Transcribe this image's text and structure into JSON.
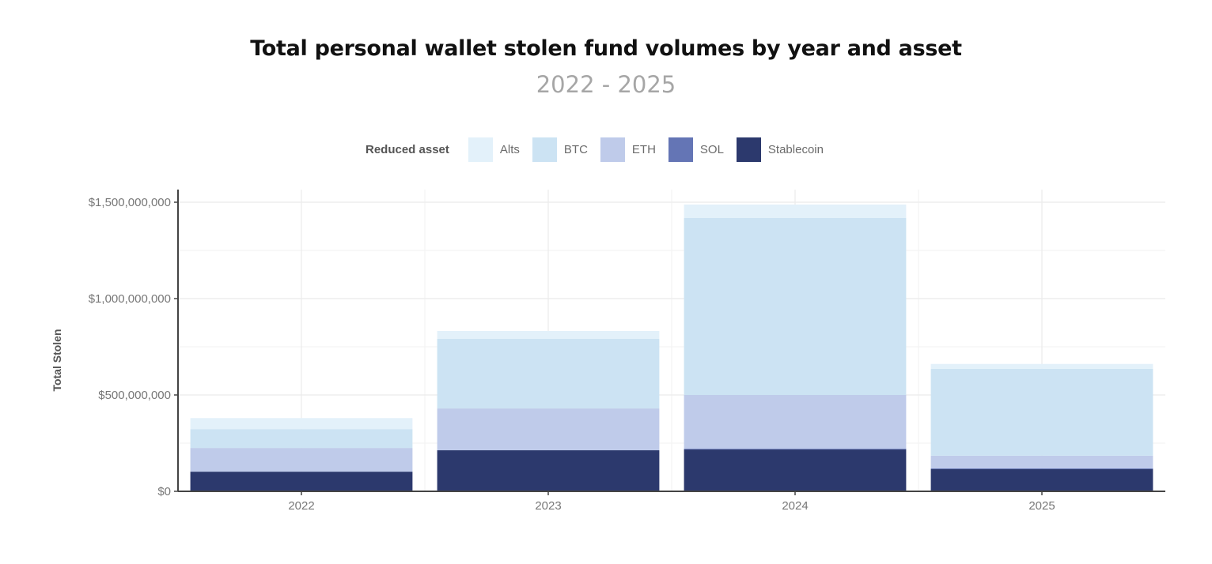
{
  "title": "Total personal wallet stolen fund volumes by year and asset",
  "subtitle": "2022 - 2025",
  "legend": {
    "title": "Reduced asset",
    "items": [
      {
        "label": "Alts",
        "color": "#e3f1fa"
      },
      {
        "label": "BTC",
        "color": "#cce3f3"
      },
      {
        "label": "ETH",
        "color": "#bfcbea"
      },
      {
        "label": "SOL",
        "color": "#6475b5"
      },
      {
        "label": "Stablecoin",
        "color": "#2c396d"
      }
    ]
  },
  "y_axis_label": "Total Stolen",
  "chart_data": {
    "type": "bar",
    "stacked": true,
    "title": "Total personal wallet stolen fund volumes by year and asset",
    "subtitle": "2022 - 2025",
    "xlabel": "",
    "ylabel": "Total Stolen",
    "categories": [
      "2022",
      "2023",
      "2024",
      "2025"
    ],
    "ylim": [
      0,
      1500000000
    ],
    "yticks": [
      0,
      500000000,
      1000000000,
      1500000000
    ],
    "ytick_labels": [
      "$0",
      "$500,000,000",
      "$1,000,000,000",
      "$1,500,000,000"
    ],
    "legend_title": "Reduced asset",
    "legend_position": "top",
    "grid": true,
    "series": [
      {
        "name": "Stablecoin",
        "color": "#2c396d",
        "values": [
          102000000,
          213000000,
          217000000,
          115000000
        ]
      },
      {
        "name": "SOL",
        "color": "#6475b5",
        "values": [
          0,
          0,
          4000000,
          4000000
        ]
      },
      {
        "name": "ETH",
        "color": "#bfcbea",
        "values": [
          123000000,
          217000000,
          279000000,
          66000000
        ]
      },
      {
        "name": "BTC",
        "color": "#cce3f3",
        "values": [
          98000000,
          361000000,
          918000000,
          451000000
        ]
      },
      {
        "name": "Alts",
        "color": "#e3f1fa",
        "values": [
          57000000,
          41000000,
          70000000,
          25000000
        ]
      }
    ]
  }
}
